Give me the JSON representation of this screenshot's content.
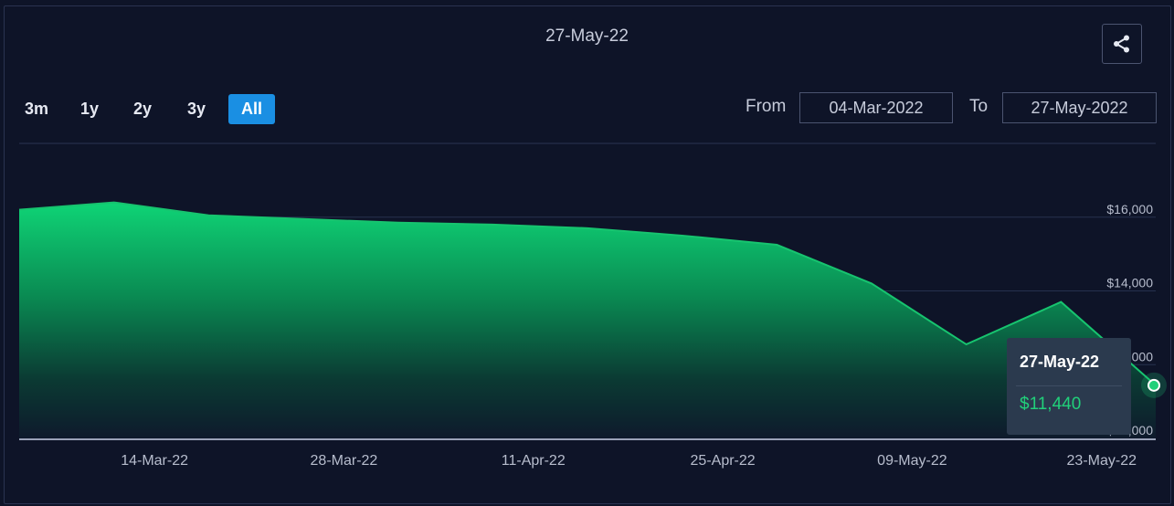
{
  "header": {
    "date": "27-May-22",
    "share_icon": "share-icon"
  },
  "range_buttons": [
    "3m",
    "1y",
    "2y",
    "3y",
    "All"
  ],
  "active_range": "All",
  "date_range": {
    "from_label": "From",
    "from_value": "04-Mar-2022",
    "to_label": "To",
    "to_value": "27-May-2022"
  },
  "tooltip": {
    "date": "27-May-22",
    "value": "$11,440"
  },
  "colors": {
    "background": "#0e1428",
    "accent": "#1a8fe3",
    "series": "#21d07a"
  },
  "chart_data": {
    "type": "area",
    "x_tick_labels": [
      "14-Mar-22",
      "28-Mar-22",
      "11-Apr-22",
      "25-Apr-22",
      "09-May-22",
      "23-May-22"
    ],
    "y_tick_labels": [
      "$10,000",
      "$12,000",
      "$14,000",
      "$16,000"
    ],
    "ylim": [
      10000,
      18000
    ],
    "grid": true,
    "series": [
      {
        "x": [
          "04-Mar-22",
          "11-Mar-22",
          "18-Mar-22",
          "25-Mar-22",
          "01-Apr-22",
          "08-Apr-22",
          "15-Apr-22",
          "22-Apr-22",
          "29-Apr-22",
          "06-May-22",
          "13-May-22",
          "20-May-22",
          "27-May-22"
        ],
        "values": [
          16200,
          16400,
          16050,
          15950,
          15850,
          15800,
          15700,
          15500,
          15250,
          14200,
          12550,
          13700,
          11440
        ]
      }
    ]
  }
}
